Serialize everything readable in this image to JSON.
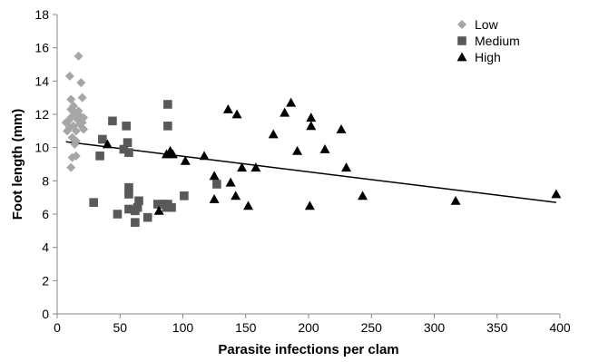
{
  "chart_data": {
    "type": "scatter",
    "xlabel": "Parasite infections per clam",
    "ylabel": "Foot length (mm)",
    "xlim": [
      0,
      400
    ],
    "ylim": [
      0,
      18
    ],
    "xticks": [
      "0",
      "50",
      "100",
      "150",
      "200",
      "250",
      "300",
      "350",
      "400"
    ],
    "yticks": [
      "0",
      "2",
      "4",
      "6",
      "8",
      "10",
      "12",
      "14",
      "16",
      "18"
    ],
    "grid": false,
    "legend_position": "top-right",
    "series": [
      {
        "name": "Low",
        "marker": "diamond",
        "color": "#a6a6a6",
        "points": [
          [
            7,
            11.5
          ],
          [
            8,
            11.0
          ],
          [
            9,
            11.6
          ],
          [
            10,
            14.3
          ],
          [
            10,
            11.2
          ],
          [
            11,
            12.3
          ],
          [
            11,
            11.8
          ],
          [
            11,
            12.9
          ],
          [
            12,
            10.6
          ],
          [
            12,
            9.4
          ],
          [
            11,
            8.8
          ],
          [
            13,
            12.5
          ],
          [
            13,
            11.3
          ],
          [
            14,
            12.1
          ],
          [
            14,
            10.2
          ],
          [
            15,
            11.0
          ],
          [
            15,
            9.5
          ],
          [
            15,
            10.4
          ],
          [
            16,
            11.7
          ],
          [
            17,
            15.5
          ],
          [
            17,
            12.2
          ],
          [
            18,
            11.4
          ],
          [
            18,
            11.9
          ],
          [
            19,
            13.9
          ],
          [
            20,
            13.0
          ],
          [
            20,
            11.5
          ],
          [
            21,
            11.8
          ],
          [
            21,
            11.1
          ]
        ]
      },
      {
        "name": "Medium",
        "marker": "square",
        "color": "#595959",
        "points": [
          [
            29,
            6.7
          ],
          [
            34,
            9.5
          ],
          [
            36,
            10.5
          ],
          [
            44,
            11.6
          ],
          [
            48,
            6.0
          ],
          [
            53,
            9.9
          ],
          [
            55,
            11.3
          ],
          [
            56,
            10.3
          ],
          [
            57,
            7.6
          ],
          [
            57,
            7.2
          ],
          [
            57,
            6.3
          ],
          [
            57,
            9.7
          ],
          [
            62,
            5.5
          ],
          [
            62,
            6.2
          ],
          [
            64,
            6.4
          ],
          [
            65,
            6.8
          ],
          [
            72,
            5.8
          ],
          [
            80,
            6.6
          ],
          [
            85,
            6.6
          ],
          [
            87,
            6.4
          ],
          [
            88,
            12.6
          ],
          [
            88,
            11.3
          ],
          [
            88,
            6.6
          ],
          [
            91,
            6.4
          ],
          [
            101,
            7.1
          ],
          [
            127,
            7.8
          ]
        ]
      },
      {
        "name": "High",
        "marker": "triangle",
        "color": "#000000",
        "points": [
          [
            40,
            10.2
          ],
          [
            81,
            6.2
          ],
          [
            87,
            9.6
          ],
          [
            90,
            9.8
          ],
          [
            92,
            9.6
          ],
          [
            102,
            9.2
          ],
          [
            117,
            9.5
          ],
          [
            125,
            8.3
          ],
          [
            125,
            6.9
          ],
          [
            136,
            12.3
          ],
          [
            138,
            7.9
          ],
          [
            142,
            7.1
          ],
          [
            143,
            12.0
          ],
          [
            147,
            8.8
          ],
          [
            152,
            6.5
          ],
          [
            158,
            8.8
          ],
          [
            172,
            10.8
          ],
          [
            181,
            12.1
          ],
          [
            186,
            12.7
          ],
          [
            191,
            9.8
          ],
          [
            201,
            6.5
          ],
          [
            202,
            11.8
          ],
          [
            202,
            11.3
          ],
          [
            213,
            9.9
          ],
          [
            226,
            11.1
          ],
          [
            230,
            8.8
          ],
          [
            243,
            7.1
          ],
          [
            317,
            6.8
          ],
          [
            397,
            7.2
          ]
        ]
      }
    ],
    "trendline": {
      "type": "linear",
      "color": "#000000",
      "x": [
        7,
        397
      ],
      "y": [
        10.35,
        6.7
      ]
    }
  }
}
